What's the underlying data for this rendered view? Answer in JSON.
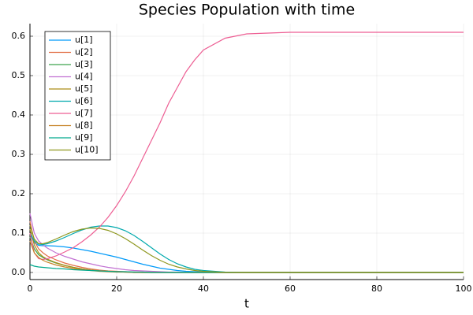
{
  "chart_data": {
    "type": "line",
    "title": "Species Population with time",
    "xlabel": "t",
    "x": [
      0,
      1,
      2,
      3,
      4,
      6,
      8,
      10,
      12,
      14,
      16,
      18,
      20,
      22,
      24,
      26,
      28,
      30,
      32,
      34,
      36,
      38,
      40,
      45,
      50,
      60,
      70,
      80,
      100
    ],
    "series": [
      {
        "name": "u[1]",
        "color": "#009af9",
        "values": [
          0.1,
          0.075,
          0.069,
          0.068,
          0.068,
          0.067,
          0.065,
          0.062,
          0.058,
          0.054,
          0.049,
          0.044,
          0.039,
          0.033,
          0.027,
          0.021,
          0.016,
          0.011,
          0.008,
          0.005,
          0.003,
          0.002,
          0.001,
          0,
          0,
          0,
          0,
          0,
          0
        ]
      },
      {
        "name": "u[2]",
        "color": "#e26f46",
        "values": [
          0.13,
          0.08,
          0.06,
          0.05,
          0.042,
          0.032,
          0.024,
          0.018,
          0.013,
          0.009,
          0.006,
          0.004,
          0.003,
          0.002,
          0.001,
          0.001,
          0,
          0,
          0,
          0,
          0,
          0,
          0,
          0,
          0,
          0,
          0,
          0,
          0
        ]
      },
      {
        "name": "u[3]",
        "color": "#3da44d",
        "values": [
          0.09,
          0.06,
          0.045,
          0.038,
          0.032,
          0.024,
          0.018,
          0.013,
          0.009,
          0.006,
          0.004,
          0.003,
          0.002,
          0.001,
          0.001,
          0,
          0,
          0,
          0,
          0,
          0,
          0,
          0,
          0,
          0,
          0,
          0,
          0,
          0
        ]
      },
      {
        "name": "u[4]",
        "color": "#c271d2",
        "values": [
          0.15,
          0.1,
          0.08,
          0.07,
          0.062,
          0.05,
          0.041,
          0.034,
          0.027,
          0.022,
          0.017,
          0.013,
          0.01,
          0.007,
          0.005,
          0.004,
          0.003,
          0.002,
          0.001,
          0.001,
          0,
          0,
          0,
          0,
          0,
          0,
          0,
          0,
          0
        ]
      },
      {
        "name": "u[5]",
        "color": "#ac8e18",
        "values": [
          0.11,
          0.07,
          0.05,
          0.04,
          0.034,
          0.025,
          0.018,
          0.013,
          0.009,
          0.006,
          0.004,
          0.003,
          0.002,
          0.001,
          0,
          0,
          0,
          0,
          0,
          0,
          0,
          0,
          0,
          0,
          0,
          0,
          0,
          0,
          0
        ]
      },
      {
        "name": "u[6]",
        "color": "#00a9ad",
        "values": [
          0.1,
          0.08,
          0.072,
          0.071,
          0.073,
          0.08,
          0.089,
          0.099,
          0.108,
          0.115,
          0.118,
          0.118,
          0.114,
          0.106,
          0.094,
          0.079,
          0.063,
          0.047,
          0.033,
          0.022,
          0.014,
          0.008,
          0.005,
          0.001,
          0,
          0,
          0,
          0,
          0
        ]
      },
      {
        "name": "u[7]",
        "color": "#ed5e93",
        "values": [
          0.1,
          0.05,
          0.035,
          0.033,
          0.035,
          0.042,
          0.052,
          0.063,
          0.078,
          0.095,
          0.115,
          0.14,
          0.17,
          0.205,
          0.245,
          0.29,
          0.335,
          0.38,
          0.43,
          0.47,
          0.51,
          0.54,
          0.565,
          0.595,
          0.606,
          0.61,
          0.61,
          0.61,
          0.61
        ]
      },
      {
        "name": "u[8]",
        "color": "#c68225",
        "values": [
          0.08,
          0.05,
          0.038,
          0.031,
          0.026,
          0.019,
          0.014,
          0.01,
          0.007,
          0.005,
          0.003,
          0.002,
          0.001,
          0.001,
          0,
          0,
          0,
          0,
          0,
          0,
          0,
          0,
          0,
          0,
          0,
          0,
          0,
          0,
          0
        ]
      },
      {
        "name": "u[9]",
        "color": "#00a98d",
        "values": [
          0.02,
          0.016,
          0.014,
          0.013,
          0.012,
          0.01,
          0.009,
          0.007,
          0.006,
          0.005,
          0.004,
          0.003,
          0.002,
          0.002,
          0.001,
          0.001,
          0,
          0,
          0,
          0,
          0,
          0,
          0,
          0,
          0,
          0,
          0,
          0,
          0
        ]
      },
      {
        "name": "u[10]",
        "color": "#8e971e",
        "values": [
          0.12,
          0.085,
          0.073,
          0.073,
          0.076,
          0.085,
          0.095,
          0.104,
          0.11,
          0.113,
          0.112,
          0.107,
          0.098,
          0.086,
          0.072,
          0.057,
          0.043,
          0.031,
          0.021,
          0.014,
          0.009,
          0.005,
          0.003,
          0,
          0,
          0,
          0,
          0,
          0
        ]
      }
    ],
    "xlim": [
      0,
      100
    ],
    "xticks": [
      0,
      20,
      40,
      60,
      80,
      100
    ],
    "ylim": [
      -0.018,
      0.632
    ],
    "yticks": [
      {
        "value": 0,
        "label": "0.0"
      },
      0.1,
      0.2,
      0.3,
      0.4,
      0.5,
      0.6
    ],
    "grid": true,
    "legend": "top-left"
  }
}
